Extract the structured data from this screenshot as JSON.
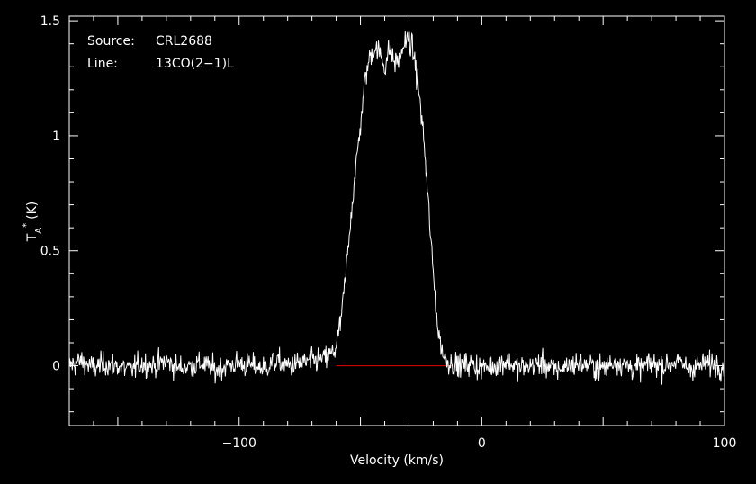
{
  "chart_data": {
    "type": "line",
    "xlabel": "Velocity (km/s)",
    "ylabel_main": "T",
    "ylabel_sub": "A",
    "ylabel_sup": "*",
    "ylabel_unit": "(K)",
    "xlim": [
      -170,
      100
    ],
    "ylim": [
      -0.26,
      1.52
    ],
    "x_ticks": [
      {
        "value": -100,
        "label": "−100"
      },
      {
        "value": 0,
        "label": "0"
      },
      {
        "value": 100,
        "label": "100"
      }
    ],
    "y_ticks": [
      {
        "value": 0,
        "label": "0"
      },
      {
        "value": 0.5,
        "label": "0.5"
      },
      {
        "value": 1,
        "label": "1"
      },
      {
        "value": 1.5,
        "label": "1.5"
      }
    ],
    "annotations": {
      "source_label": "Source:",
      "source_value": "CRL2688",
      "line_label": "Line:",
      "line_value": "13CO(2−1)L"
    },
    "baseline": {
      "value": 0,
      "x_range": [
        -60,
        -12
      ],
      "color": "#cc0000"
    },
    "series": [
      {
        "color": "#ffffff",
        "x": [
          -170,
          -165,
          -160,
          -155,
          -150,
          -145,
          -140,
          -135,
          -130,
          -125,
          -120,
          -115,
          -110,
          -105,
          -100,
          -95,
          -90,
          -85,
          -80,
          -75,
          -70,
          -65,
          -62,
          -60,
          -58,
          -56,
          -54,
          -52,
          -50,
          -48,
          -46,
          -44,
          -42,
          -40,
          -38,
          -36,
          -34,
          -32,
          -30,
          -28,
          -26,
          -24,
          -22,
          -20,
          -18,
          -16,
          -14,
          -12,
          -10,
          -5,
          0,
          5,
          10,
          15,
          20,
          25,
          30,
          35,
          40,
          45,
          50,
          55,
          60,
          65,
          70,
          75,
          80,
          85,
          90,
          95,
          100
        ],
        "y": [
          0.0,
          0.02,
          -0.01,
          0.01,
          0.0,
          -0.02,
          0.01,
          0.0,
          0.02,
          -0.01,
          0.0,
          0.01,
          -0.02,
          0.0,
          0.01,
          0.0,
          -0.01,
          0.02,
          0.0,
          0.01,
          0.02,
          0.03,
          0.05,
          0.08,
          0.2,
          0.4,
          0.65,
          0.85,
          1.05,
          1.25,
          1.35,
          1.38,
          1.36,
          1.3,
          1.38,
          1.32,
          1.33,
          1.4,
          1.42,
          1.35,
          1.2,
          1.0,
          0.7,
          0.4,
          0.15,
          0.05,
          0.02,
          0.01,
          0.0,
          0.01,
          -0.01,
          0.0,
          0.02,
          -0.01,
          0.0,
          0.01,
          -0.02,
          0.0,
          0.01,
          0.0,
          -0.01,
          0.02,
          0.0,
          -0.01,
          0.01,
          0.0,
          0.02,
          -0.01,
          0.0,
          0.01,
          0.0
        ]
      }
    ]
  }
}
